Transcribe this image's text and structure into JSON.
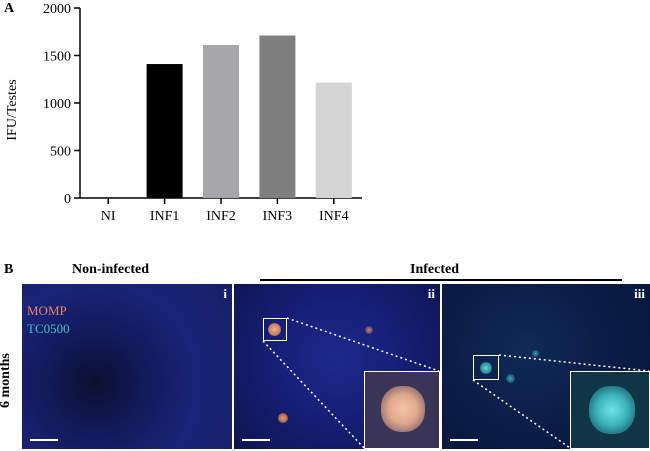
{
  "panels": {
    "a_label": "A",
    "b_label": "B"
  },
  "chart_data": {
    "type": "bar",
    "categories": [
      "NI",
      "INF1",
      "INF2",
      "INF3",
      "INF4"
    ],
    "values": [
      0,
      1410,
      1610,
      1710,
      1215
    ],
    "colors": [
      "#000000",
      "#000000",
      "#a6a6a8",
      "#7f7f7f",
      "#d4d4d4"
    ],
    "ylabel": "IFU/Testes",
    "ylim": [
      0,
      2000
    ],
    "yticks": [
      0,
      500,
      1000,
      1500,
      2000
    ],
    "grid": false
  },
  "micrographs": {
    "row_label": "6 months",
    "non_infected_title": "Non-infected",
    "infected_title": "Infected",
    "stain_momp": "MOMP",
    "stain_tc0500": "TC0500",
    "stain_colors": {
      "momp": "#e8836a",
      "tc0500": "#3fc2c8"
    },
    "tiles": [
      {
        "roman": "i",
        "condition": "non-infected"
      },
      {
        "roman": "ii",
        "condition": "infected"
      },
      {
        "roman": "iii",
        "condition": "infected"
      }
    ]
  }
}
